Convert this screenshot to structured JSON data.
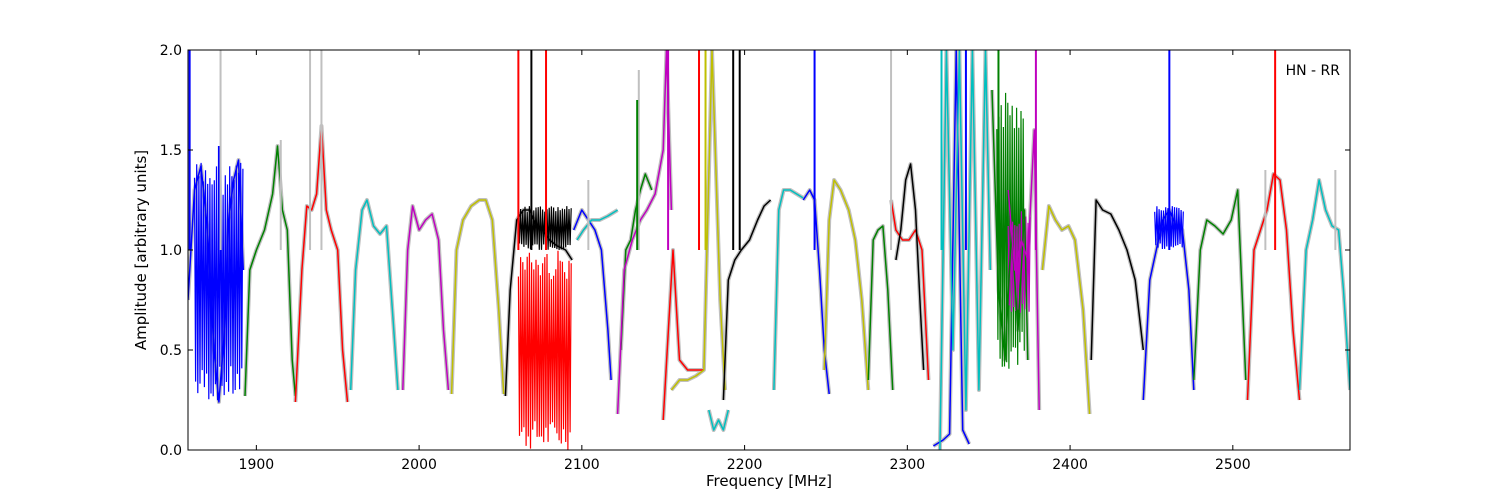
{
  "chart_data": {
    "type": "line",
    "title": "",
    "annotation": "HN - RR",
    "xlabel": "Frequency [MHz]",
    "ylabel": "Amplitude [arbitrary units]",
    "xlim": [
      1858,
      2572
    ],
    "ylim": [
      0,
      2.0
    ],
    "xticks": [
      1900,
      2000,
      2100,
      2200,
      2300,
      2400,
      2500
    ],
    "yticks": [
      0.0,
      0.5,
      1.0,
      1.5,
      2.0
    ],
    "xtick_labels": [
      "1900",
      "2000",
      "2100",
      "2200",
      "2300",
      "2400",
      "2500"
    ],
    "ytick_labels": [
      "0.0",
      "0.5",
      "1.0",
      "1.5",
      "2.0"
    ],
    "grid": false,
    "background_color": "#c0c0c0",
    "series": [
      {
        "color": "#0000ff",
        "x": [
          1858,
          1862,
          1866,
          1870,
          1874,
          1877,
          1880,
          1883,
          1886,
          1889,
          1892
        ],
        "y": [
          0.75,
          1.3,
          1.42,
          1.1,
          0.5,
          0.24,
          0.55,
          1.15,
          1.35,
          1.45,
          0.9
        ]
      },
      {
        "color": "#008000",
        "x": [
          1893,
          1896,
          1900,
          1905,
          1910,
          1913,
          1916,
          1919,
          1922,
          1924
        ],
        "y": [
          0.27,
          0.9,
          1.0,
          1.1,
          1.28,
          1.52,
          1.2,
          1.1,
          0.45,
          0.27
        ]
      },
      {
        "color": "#ff0000",
        "x": [
          1924,
          1928,
          1931,
          1934,
          1937,
          1940,
          1943,
          1946,
          1950,
          1953,
          1956
        ],
        "y": [
          0.24,
          0.9,
          1.22,
          1.2,
          1.28,
          1.62,
          1.2,
          1.1,
          1.0,
          0.5,
          0.24
        ]
      },
      {
        "color": "#00bfbf",
        "x": [
          1958,
          1961,
          1965,
          1968,
          1972,
          1976,
          1980,
          1984,
          1987
        ],
        "y": [
          0.3,
          0.9,
          1.2,
          1.25,
          1.12,
          1.08,
          1.12,
          0.65,
          0.3
        ]
      },
      {
        "color": "#bf00bf",
        "x": [
          1990,
          1993,
          1996,
          2000,
          2004,
          2008,
          2012,
          2015,
          2018
        ],
        "y": [
          0.3,
          1.0,
          1.22,
          1.1,
          1.15,
          1.18,
          1.05,
          0.6,
          0.3
        ]
      },
      {
        "color": "#bfbf00",
        "x": [
          2020,
          2023,
          2027,
          2032,
          2037,
          2041,
          2045,
          2049,
          2052
        ],
        "y": [
          0.28,
          1.0,
          1.15,
          1.22,
          1.25,
          1.25,
          1.15,
          0.7,
          0.28
        ]
      },
      {
        "color": "#000000",
        "x": [
          2053,
          2056,
          2060,
          2064,
          2068,
          2072,
          2076,
          2080,
          2085,
          2090,
          2094
        ],
        "y": [
          0.27,
          0.8,
          1.15,
          1.2,
          1.2,
          1.12,
          1.1,
          1.05,
          1.02,
          1.0,
          0.95
        ]
      },
      {
        "color": "#0000ff",
        "x": [
          2095,
          2100,
          2104,
          2108,
          2112,
          2116,
          2118
        ],
        "y": [
          1.1,
          1.2,
          1.15,
          1.1,
          1.0,
          0.6,
          0.35
        ]
      },
      {
        "color": "#00bfbf",
        "x": [
          2097,
          2101,
          2106,
          2111,
          2116,
          2122
        ],
        "y": [
          1.05,
          1.1,
          1.15,
          1.15,
          1.17,
          1.2
        ]
      },
      {
        "color": "#008000",
        "x": [
          2124,
          2127,
          2130,
          2133,
          2136,
          2139,
          2143
        ],
        "y": [
          0.5,
          1.0,
          1.05,
          1.2,
          1.3,
          1.38,
          1.3
        ]
      },
      {
        "color": "#bf00bf",
        "x": [
          2122,
          2126,
          2131,
          2136,
          2140,
          2145,
          2150,
          2152,
          2155
        ],
        "y": [
          0.18,
          0.9,
          1.05,
          1.15,
          1.2,
          1.28,
          1.5,
          2.0,
          1.2
        ]
      },
      {
        "color": "#ff0000",
        "x": [
          2150,
          2156,
          2160,
          2165,
          2170,
          2175
        ],
        "y": [
          0.15,
          1.0,
          0.45,
          0.4,
          0.4,
          0.4
        ]
      },
      {
        "color": "#bfbf00",
        "x": [
          2155,
          2160,
          2165,
          2170,
          2175,
          2180,
          2185,
          2188
        ],
        "y": [
          0.3,
          0.35,
          0.35,
          0.37,
          0.4,
          2.0,
          0.75,
          0.3
        ]
      },
      {
        "color": "#00bfbf",
        "x": [
          2178,
          2181,
          2184,
          2187,
          2190
        ],
        "y": [
          0.2,
          0.1,
          0.15,
          0.1,
          0.2
        ]
      },
      {
        "color": "#000000",
        "x": [
          2187,
          2190,
          2194,
          2198,
          2203,
          2208,
          2212,
          2216
        ],
        "y": [
          0.25,
          0.85,
          0.95,
          1.0,
          1.05,
          1.15,
          1.22,
          1.25
        ]
      },
      {
        "color": "#00bfbf",
        "x": [
          2218,
          2221,
          2224,
          2228,
          2232,
          2236
        ],
        "y": [
          0.3,
          1.2,
          1.3,
          1.3,
          1.28,
          1.26
        ]
      },
      {
        "color": "#0000ff",
        "x": [
          2236,
          2240,
          2243,
          2246,
          2249,
          2252
        ],
        "y": [
          1.25,
          1.3,
          1.25,
          0.9,
          0.5,
          0.28
        ]
      },
      {
        "color": "#bfbf00",
        "x": [
          2249,
          2252,
          2255,
          2259,
          2264,
          2268,
          2272,
          2276
        ],
        "y": [
          0.4,
          1.15,
          1.35,
          1.3,
          1.2,
          1.05,
          0.75,
          0.3
        ]
      },
      {
        "color": "#008000",
        "x": [
          2276,
          2279,
          2282,
          2285,
          2288,
          2291
        ],
        "y": [
          0.35,
          1.05,
          1.1,
          1.12,
          0.8,
          0.3
        ]
      },
      {
        "color": "#ff0000",
        "x": [
          2290,
          2293,
          2297,
          2301,
          2305,
          2309,
          2313
        ],
        "y": [
          1.25,
          1.1,
          1.05,
          1.05,
          1.1,
          1.0,
          0.35
        ]
      },
      {
        "color": "#000000",
        "x": [
          2293,
          2296,
          2299,
          2302,
          2305,
          2308,
          2310
        ],
        "y": [
          0.95,
          1.1,
          1.35,
          1.43,
          1.2,
          0.7,
          0.4
        ]
      },
      {
        "color": "#0000ff",
        "x": [
          2316,
          2322,
          2326,
          2330,
          2334,
          2338
        ],
        "y": [
          0.02,
          0.05,
          0.08,
          2.0,
          0.1,
          0.03
        ]
      },
      {
        "color": "#00bfbf",
        "x": [
          2320,
          2324,
          2328,
          2332,
          2336,
          2340,
          2344,
          2348,
          2351
        ],
        "y": [
          0.0,
          2.0,
          0.5,
          2.0,
          0.2,
          2.0,
          0.3,
          2.0,
          0.9
        ]
      },
      {
        "color": "#008000",
        "x": [
          2352,
          2356,
          2360,
          2364,
          2368,
          2372,
          2374
        ],
        "y": [
          1.8,
          0.8,
          0.45,
          1.1,
          0.6,
          1.2,
          0.45
        ]
      },
      {
        "color": "#bf00bf",
        "x": [
          2362,
          2366,
          2370,
          2374,
          2378,
          2381
        ],
        "y": [
          1.3,
          0.9,
          1.05,
          0.95,
          1.6,
          0.2
        ]
      },
      {
        "color": "#bfbf00",
        "x": [
          2383,
          2387,
          2391,
          2395,
          2399,
          2403,
          2408,
          2412
        ],
        "y": [
          0.9,
          1.22,
          1.15,
          1.1,
          1.12,
          1.05,
          0.7,
          0.18
        ]
      },
      {
        "color": "#000000",
        "x": [
          2413,
          2416,
          2420,
          2425,
          2430,
          2435,
          2440,
          2445
        ],
        "y": [
          0.45,
          1.25,
          1.2,
          1.18,
          1.1,
          1.0,
          0.85,
          0.5
        ]
      },
      {
        "color": "#0000ff",
        "x": [
          2445,
          2449,
          2453,
          2457,
          2461,
          2465,
          2469,
          2473,
          2476
        ],
        "y": [
          0.25,
          0.85,
          1.0,
          1.15,
          1.2,
          1.12,
          1.1,
          0.8,
          0.3
        ]
      },
      {
        "color": "#008000",
        "x": [
          2476,
          2480,
          2484,
          2489,
          2494,
          2499,
          2503,
          2508
        ],
        "y": [
          0.35,
          1.0,
          1.15,
          1.12,
          1.08,
          1.15,
          1.3,
          0.35
        ]
      },
      {
        "color": "#ff0000",
        "x": [
          2509,
          2513,
          2517,
          2521,
          2525,
          2529,
          2533,
          2537,
          2541
        ],
        "y": [
          0.25,
          1.0,
          1.1,
          1.2,
          1.38,
          1.35,
          1.1,
          0.6,
          0.25
        ]
      },
      {
        "color": "#00bfbf",
        "x": [
          2541,
          2545,
          2549,
          2553,
          2557,
          2561,
          2565,
          2568,
          2572
        ],
        "y": [
          0.3,
          1.0,
          1.15,
          1.35,
          1.2,
          1.12,
          1.1,
          0.8,
          0.3
        ]
      }
    ],
    "dense_bands": [
      {
        "color": "#0000ff",
        "x": [
          1862,
          1892
        ],
        "y": [
          0.24,
          1.45
        ]
      },
      {
        "color": "#ff0000",
        "x": [
          2061,
          2094
        ],
        "y": [
          0.0,
          1.0
        ]
      },
      {
        "color": "#000000",
        "x": [
          2061,
          2094
        ],
        "y": [
          1.0,
          1.22
        ]
      },
      {
        "color": "#008000",
        "x": [
          2355,
          2372
        ],
        "y": [
          0.4,
          1.8
        ]
      },
      {
        "color": "#bf00bf",
        "x": [
          2362,
          2376
        ],
        "y": [
          0.65,
          1.2
        ]
      },
      {
        "color": "#0000ff",
        "x": [
          2452,
          2470
        ],
        "y": [
          1.0,
          1.22
        ]
      }
    ],
    "spikes": [
      {
        "color": "#0000ff",
        "x": 1859,
        "y": 2.0
      },
      {
        "color": "#0000ff",
        "x": 1877,
        "y": 1.52
      },
      {
        "color": "#c0c0c0",
        "x": 1878,
        "y": 2.0
      },
      {
        "color": "#c0c0c0",
        "x": 1915,
        "y": 1.55
      },
      {
        "color": "#c0c0c0",
        "x": 1933,
        "y": 2.0
      },
      {
        "color": "#c0c0c0",
        "x": 1940,
        "y": 2.0
      },
      {
        "color": "#ff0000",
        "x": 2061,
        "y": 2.0
      },
      {
        "color": "#000000",
        "x": 2069,
        "y": 2.0
      },
      {
        "color": "#ff0000",
        "x": 2078,
        "y": 2.0
      },
      {
        "color": "#c0c0c0",
        "x": 2104,
        "y": 1.35
      },
      {
        "color": "#c0c0c0",
        "x": 2135,
        "y": 1.9
      },
      {
        "color": "#008000",
        "x": 2134,
        "y": 1.75
      },
      {
        "color": "#bf00bf",
        "x": 2153,
        "y": 2.0
      },
      {
        "color": "#ff0000",
        "x": 2172,
        "y": 2.0
      },
      {
        "color": "#bfbf00",
        "x": 2176,
        "y": 2.0
      },
      {
        "color": "#000000",
        "x": 2193,
        "y": 2.0
      },
      {
        "color": "#000000",
        "x": 2197,
        "y": 2.0
      },
      {
        "color": "#0000ff",
        "x": 2243,
        "y": 2.0
      },
      {
        "color": "#c0c0c0",
        "x": 2290,
        "y": 2.0
      },
      {
        "color": "#00bfbf",
        "x": 2321,
        "y": 2.0
      },
      {
        "color": "#0000ff",
        "x": 2336,
        "y": 2.0
      },
      {
        "color": "#008000",
        "x": 2356,
        "y": 2.0
      },
      {
        "color": "#bf00bf",
        "x": 2379,
        "y": 2.0
      },
      {
        "color": "#0000ff",
        "x": 2461,
        "y": 2.0
      },
      {
        "color": "#ff0000",
        "x": 2526,
        "y": 2.0
      },
      {
        "color": "#c0c0c0",
        "x": 2520,
        "y": 1.4
      },
      {
        "color": "#c0c0c0",
        "x": 2563,
        "y": 1.4
      }
    ]
  }
}
